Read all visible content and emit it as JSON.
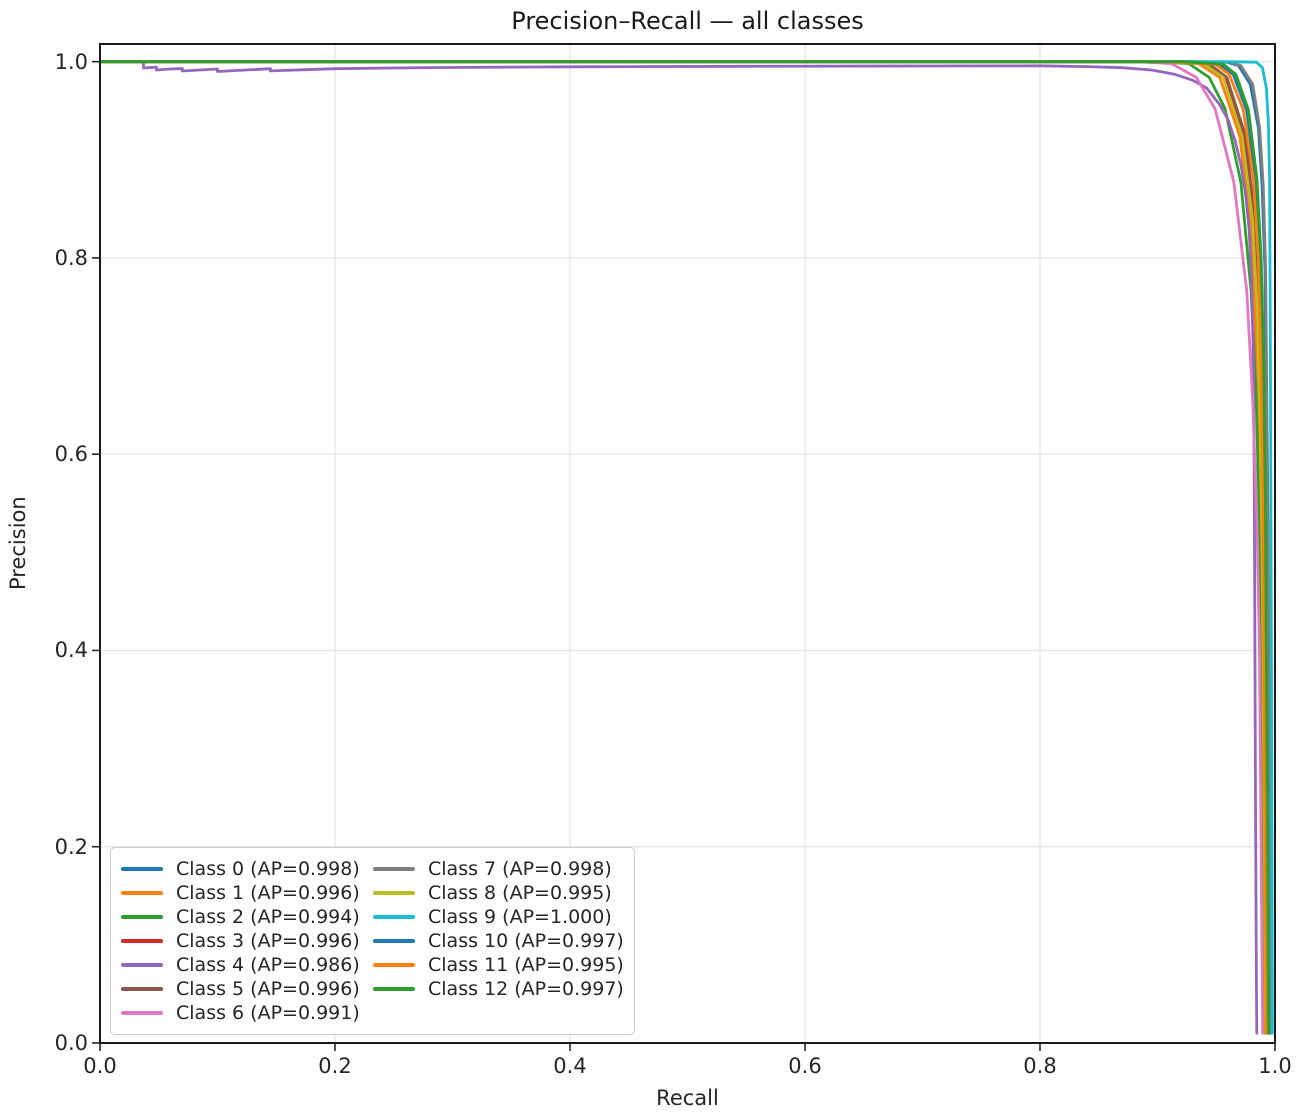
{
  "title": "Precision–Recall — all classes",
  "axes": {
    "xlabel": "Recall",
    "ylabel": "Precision",
    "x_tick_labels": [
      "0.0",
      "0.2",
      "0.4",
      "0.6",
      "0.8",
      "1.0"
    ],
    "x_tick_values": [
      0,
      0.2,
      0.4,
      0.6,
      0.8,
      1.0
    ],
    "y_tick_labels": [
      "0.0",
      "0.2",
      "0.4",
      "0.6",
      "0.8",
      "1.0"
    ],
    "y_tick_values": [
      0,
      0.2,
      0.4,
      0.6,
      0.8,
      1.0
    ],
    "grid": true
  },
  "colors": {
    "grid": "#e3e3e3",
    "spine": "#1a1a1a",
    "tick": "#262626",
    "text": "#262626"
  },
  "legend": {
    "position": "lower-left",
    "columns": 2
  },
  "chart_data": {
    "type": "line",
    "title": "Precision–Recall — all classes",
    "xlabel": "Recall",
    "ylabel": "Precision",
    "xlim": [
      0,
      1.0
    ],
    "ylim": [
      0,
      1.018
    ],
    "grid": true,
    "series": [
      {
        "name": "Class 0 (AP=0.998)",
        "ap": 0.998,
        "color": "#1f77b4",
        "points": [
          [
            0,
            1
          ],
          [
            0.6,
            1
          ],
          [
            0.85,
            1
          ],
          [
            0.925,
            1
          ],
          [
            0.959,
            0.9995
          ],
          [
            0.969,
            0.996
          ],
          [
            0.979,
            0.977
          ],
          [
            0.986,
            0.932
          ],
          [
            0.989,
            0.873
          ],
          [
            0.9915,
            0.788
          ],
          [
            0.9925,
            0.6
          ],
          [
            0.9945,
            0.25
          ],
          [
            0.9955,
            0.01
          ]
        ]
      },
      {
        "name": "Class 1 (AP=0.996)",
        "ap": 0.996,
        "color": "#ff7f0e",
        "points": [
          [
            0,
            1
          ],
          [
            0.6,
            1
          ],
          [
            0.85,
            1
          ],
          [
            0.9,
            1
          ],
          [
            0.935,
            0.998
          ],
          [
            0.953,
            0.984
          ],
          [
            0.97,
            0.924
          ],
          [
            0.979,
            0.837
          ],
          [
            0.983,
            0.743
          ],
          [
            0.986,
            0.626
          ],
          [
            0.9878,
            0.48
          ],
          [
            0.99,
            0.2
          ],
          [
            0.9915,
            0.01
          ]
        ]
      },
      {
        "name": "Class 2 (AP=0.994)",
        "ap": 0.994,
        "color": "#2ca02c",
        "points": [
          [
            0,
            1
          ],
          [
            0.6,
            1
          ],
          [
            0.85,
            1
          ],
          [
            0.9,
            1
          ],
          [
            0.9266,
            0.998
          ],
          [
            0.944,
            0.984
          ],
          [
            0.9575,
            0.952
          ],
          [
            0.971,
            0.877
          ],
          [
            0.9797,
            0.766
          ],
          [
            0.984,
            0.656
          ],
          [
            0.9867,
            0.528
          ],
          [
            0.9885,
            0.4
          ],
          [
            0.99,
            0.15
          ],
          [
            0.991,
            0.01
          ]
        ]
      },
      {
        "name": "Class 3 (AP=0.996)",
        "ap": 0.996,
        "color": "#d62728",
        "points": [
          [
            0,
            1
          ],
          [
            0.6,
            1
          ],
          [
            0.85,
            1
          ],
          [
            0.91,
            1
          ],
          [
            0.942,
            0.998
          ],
          [
            0.958,
            0.984
          ],
          [
            0.974,
            0.924
          ],
          [
            0.982,
            0.837
          ],
          [
            0.986,
            0.743
          ],
          [
            0.989,
            0.626
          ],
          [
            0.9905,
            0.48
          ],
          [
            0.992,
            0.2
          ],
          [
            0.993,
            0.01
          ]
        ]
      },
      {
        "name": "Class 4 (AP=0.986)",
        "ap": 0.986,
        "color": "#9467bd",
        "points": [
          [
            0,
            1
          ],
          [
            0.037,
            1
          ],
          [
            0.037,
            0.9935
          ],
          [
            0.048,
            0.9945
          ],
          [
            0.048,
            0.9915
          ],
          [
            0.06,
            0.9925
          ],
          [
            0.07,
            0.993
          ],
          [
            0.07,
            0.9905
          ],
          [
            0.1,
            0.9925
          ],
          [
            0.1,
            0.99
          ],
          [
            0.145,
            0.9928
          ],
          [
            0.145,
            0.9906
          ],
          [
            0.2,
            0.9928
          ],
          [
            0.28,
            0.994
          ],
          [
            0.4,
            0.9948
          ],
          [
            0.55,
            0.9953
          ],
          [
            0.7,
            0.9956
          ],
          [
            0.8,
            0.9958
          ],
          [
            0.84,
            0.995
          ],
          [
            0.87,
            0.9938
          ],
          [
            0.895,
            0.9915
          ],
          [
            0.915,
            0.987
          ],
          [
            0.93,
            0.981
          ],
          [
            0.942,
            0.973
          ],
          [
            0.953,
            0.956
          ],
          [
            0.96,
            0.941
          ],
          [
            0.966,
            0.92
          ],
          [
            0.971,
            0.895
          ],
          [
            0.975,
            0.865
          ],
          [
            0.978,
            0.83
          ],
          [
            0.98,
            0.78
          ],
          [
            0.9815,
            0.7
          ],
          [
            0.9825,
            0.55
          ],
          [
            0.9832,
            0.3
          ],
          [
            0.984,
            0.1
          ],
          [
            0.9845,
            0.01
          ]
        ]
      },
      {
        "name": "Class 5 (AP=0.996)",
        "ap": 0.996,
        "color": "#8c564b",
        "points": [
          [
            0,
            1
          ],
          [
            0.6,
            1
          ],
          [
            0.85,
            1
          ],
          [
            0.912,
            1
          ],
          [
            0.9436,
            0.998
          ],
          [
            0.959,
            0.984
          ],
          [
            0.975,
            0.924
          ],
          [
            0.983,
            0.837
          ],
          [
            0.987,
            0.743
          ],
          [
            0.9895,
            0.626
          ],
          [
            0.991,
            0.48
          ],
          [
            0.9925,
            0.2
          ],
          [
            0.9935,
            0.01
          ]
        ]
      },
      {
        "name": "Class 6 (AP=0.991)",
        "ap": 0.991,
        "color": "#e377c2",
        "points": [
          [
            0,
            1
          ],
          [
            0.6,
            1
          ],
          [
            0.85,
            1
          ],
          [
            0.88,
            1
          ],
          [
            0.912,
            0.998
          ],
          [
            0.933,
            0.984
          ],
          [
            0.949,
            0.952
          ],
          [
            0.965,
            0.877
          ],
          [
            0.976,
            0.766
          ],
          [
            0.981,
            0.656
          ],
          [
            0.9847,
            0.528
          ],
          [
            0.9868,
            0.4
          ],
          [
            0.9885,
            0.15
          ],
          [
            0.9895,
            0.01
          ]
        ]
      },
      {
        "name": "Class 7 (AP=0.998)",
        "ap": 0.998,
        "color": "#7f7f7f",
        "points": [
          [
            0,
            1
          ],
          [
            0.6,
            1
          ],
          [
            0.85,
            1
          ],
          [
            0.93,
            1
          ],
          [
            0.962,
            0.9995
          ],
          [
            0.971,
            0.996
          ],
          [
            0.981,
            0.977
          ],
          [
            0.987,
            0.932
          ],
          [
            0.99,
            0.873
          ],
          [
            0.992,
            0.788
          ],
          [
            0.9935,
            0.6
          ],
          [
            0.996,
            0.25
          ],
          [
            0.997,
            0.01
          ]
        ]
      },
      {
        "name": "Class 8 (AP=0.995)",
        "ap": 0.995,
        "color": "#bcbd22",
        "points": [
          [
            0,
            1
          ],
          [
            0.6,
            1
          ],
          [
            0.85,
            1
          ],
          [
            0.905,
            1
          ],
          [
            0.939,
            0.998
          ],
          [
            0.956,
            0.984
          ],
          [
            0.972,
            0.924
          ],
          [
            0.981,
            0.837
          ],
          [
            0.985,
            0.743
          ],
          [
            0.9876,
            0.626
          ],
          [
            0.9892,
            0.48
          ],
          [
            0.991,
            0.2
          ],
          [
            0.992,
            0.01
          ]
        ]
      },
      {
        "name": "Class 9 (AP=1.000)",
        "ap": 1.0,
        "color": "#17becf",
        "points": [
          [
            0,
            1
          ],
          [
            0.6,
            1
          ],
          [
            0.9,
            1
          ],
          [
            0.962,
            1
          ],
          [
            0.9842,
            0.9995
          ],
          [
            0.9893,
            0.994
          ],
          [
            0.9927,
            0.973
          ],
          [
            0.9944,
            0.937
          ],
          [
            0.9954,
            0.88
          ],
          [
            0.9961,
            0.7
          ],
          [
            0.9972,
            0.3
          ],
          [
            0.9978,
            0.01
          ]
        ]
      },
      {
        "name": "Class 10 (AP=0.997)",
        "ap": 0.997,
        "color": "#1f77b4",
        "points": [
          [
            0,
            1
          ],
          [
            0.6,
            1
          ],
          [
            0.85,
            1
          ],
          [
            0.915,
            1
          ],
          [
            0.953,
            0.9974
          ],
          [
            0.9644,
            0.987
          ],
          [
            0.9758,
            0.951
          ],
          [
            0.9834,
            0.881
          ],
          [
            0.9872,
            0.801
          ],
          [
            0.9895,
            0.697
          ],
          [
            0.991,
            0.55
          ],
          [
            0.993,
            0.22
          ],
          [
            0.994,
            0.01
          ]
        ]
      },
      {
        "name": "Class 11 (AP=0.995)",
        "ap": 0.995,
        "color": "#ff7f0e",
        "points": [
          [
            0,
            1
          ],
          [
            0.6,
            1
          ],
          [
            0.85,
            1
          ],
          [
            0.908,
            1
          ],
          [
            0.949,
            0.9974
          ],
          [
            0.961,
            0.987
          ],
          [
            0.973,
            0.951
          ],
          [
            0.9816,
            0.881
          ],
          [
            0.9857,
            0.801
          ],
          [
            0.988,
            0.697
          ],
          [
            0.9898,
            0.55
          ],
          [
            0.9915,
            0.22
          ],
          [
            0.9925,
            0.01
          ]
        ]
      },
      {
        "name": "Class 12 (AP=0.997)",
        "ap": 0.997,
        "color": "#2ca02c",
        "points": [
          [
            0,
            1
          ],
          [
            0.6,
            1
          ],
          [
            0.85,
            1
          ],
          [
            0.92,
            1
          ],
          [
            0.956,
            0.9974
          ],
          [
            0.9667,
            0.987
          ],
          [
            0.9774,
            0.951
          ],
          [
            0.9846,
            0.881
          ],
          [
            0.9882,
            0.801
          ],
          [
            0.9903,
            0.697
          ],
          [
            0.9918,
            0.55
          ],
          [
            0.9935,
            0.22
          ],
          [
            0.9945,
            0.01
          ]
        ]
      }
    ]
  }
}
